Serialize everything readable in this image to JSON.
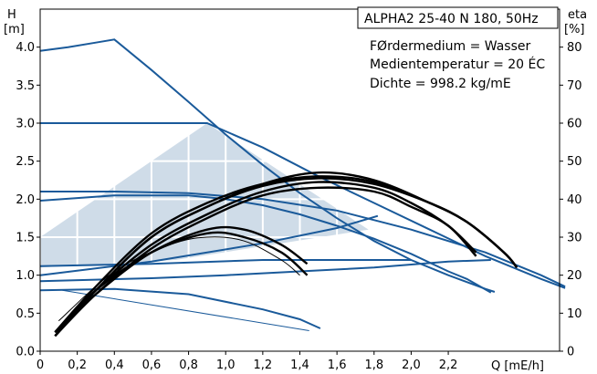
{
  "chart_data": {
    "type": "line",
    "title": "ALPHA2 25-40 N 180, 50Hz",
    "info_lines": [
      "FØrdermedium = Wasser",
      "Medientemperatur = 20 ÉC",
      "Dichte = 998.2 kg/mE"
    ],
    "x_axis": {
      "label": "Q [mE/h]",
      "range": [
        0,
        2.8
      ],
      "ticks": [
        0,
        0.2,
        0.4,
        0.6,
        0.8,
        1.0,
        1.2,
        1.4,
        1.6,
        1.8,
        2.0,
        2.2
      ],
      "tick_labels": [
        "0",
        "0,2",
        "0,4",
        "0,6",
        "0,8",
        "1,0",
        "1,2",
        "1,4",
        "1,6",
        "1,8",
        "2,0",
        "2,2"
      ]
    },
    "y_left": {
      "label_top": "H",
      "label_bottom": "[m]",
      "range": [
        0,
        4.5
      ],
      "ticks": [
        0,
        0.5,
        1.0,
        1.5,
        2.0,
        2.5,
        3.0,
        3.5,
        4.0
      ],
      "tick_labels": [
        "0.0",
        "0.5",
        "1.0",
        "1.5",
        "2.0",
        "2.5",
        "3.0",
        "3.5",
        "4.0"
      ]
    },
    "y_right": {
      "label_top": "eta",
      "label_bottom": "[%]",
      "range": [
        0,
        90
      ],
      "ticks": [
        0,
        10,
        20,
        30,
        40,
        50,
        60,
        70,
        80
      ],
      "tick_labels": [
        "0",
        "10",
        "20",
        "30",
        "40",
        "50",
        "60",
        "70",
        "80"
      ]
    },
    "colors": {
      "pump_curve": "#1a5a9a",
      "efficiency": "#000000",
      "area_fill": "#cfdce8",
      "grid": "#ffffff"
    },
    "head_curves": [
      {
        "x": [
          0,
          0.15,
          0.3,
          0.4,
          0.6,
          0.8,
          1.0,
          1.2,
          1.4,
          1.6,
          1.8,
          2.0,
          2.2,
          2.4,
          2.45
        ],
        "y": [
          3.95,
          4.0,
          4.06,
          4.1,
          3.7,
          3.28,
          2.85,
          2.45,
          2.08,
          1.75,
          1.45,
          1.2,
          1.0,
          0.82,
          0.78
        ]
      },
      {
        "x": [
          0,
          0.5,
          0.9,
          1.2,
          1.5,
          1.8,
          2.1,
          2.4,
          2.7,
          2.83
        ],
        "y": [
          3.0,
          3.0,
          3.0,
          2.68,
          2.3,
          1.95,
          1.6,
          1.25,
          0.95,
          0.83
        ]
      },
      {
        "x": [
          0,
          0.4,
          0.8,
          1.2,
          1.6,
          2.0,
          2.4,
          2.7,
          2.83
        ],
        "y": [
          2.1,
          2.1,
          2.08,
          2.0,
          1.85,
          1.6,
          1.3,
          1.0,
          0.85
        ]
      },
      {
        "x": [
          0,
          0.4,
          0.8,
          1.0,
          1.2,
          1.4,
          1.6,
          1.8,
          2.0,
          2.2,
          2.3,
          2.43
        ],
        "y": [
          1.98,
          2.05,
          2.05,
          2.0,
          1.92,
          1.8,
          1.65,
          1.48,
          1.28,
          1.05,
          0.95,
          0.77
        ]
      },
      {
        "x": [
          0,
          0.4,
          0.8,
          1.2,
          1.4,
          1.51
        ],
        "y": [
          0.8,
          0.82,
          0.75,
          0.55,
          0.42,
          0.3
        ]
      },
      {
        "x": [
          0,
          0.6,
          1.0,
          1.4,
          1.8,
          2.2,
          2.43
        ],
        "y": [
          0.92,
          0.96,
          1.0,
          1.05,
          1.1,
          1.18,
          1.2
        ]
      },
      {
        "x": [
          0,
          0.6,
          1.2,
          1.6,
          2.0
        ],
        "y": [
          1.12,
          1.15,
          1.2,
          1.2,
          1.2
        ]
      },
      {
        "x": [
          0,
          0.6,
          1.2,
          1.6,
          1.82
        ],
        "y": [
          1.0,
          1.18,
          1.42,
          1.62,
          1.78
        ]
      }
    ],
    "operating_area": {
      "x": [
        0,
        0.9,
        1.77,
        0.73,
        0
      ],
      "y": [
        1.5,
        3.0,
        1.6,
        1.2,
        1.1
      ]
    },
    "efficiency_curves": [
      {
        "x": [
          0.08,
          0.3,
          0.6,
          0.9,
          1.2,
          1.5,
          1.8,
          2.1,
          2.3,
          2.5,
          2.57
        ],
        "y": [
          4,
          16,
          30,
          38,
          44,
          47,
          45,
          39,
          34,
          26,
          22
        ]
      },
      {
        "x": [
          0.08,
          0.3,
          0.6,
          0.9,
          1.2,
          1.5,
          1.8,
          2.1,
          2.3,
          2.5,
          2.57
        ],
        "y": [
          4,
          16,
          30,
          38,
          43.5,
          45.5,
          44,
          39,
          34,
          26,
          22
        ]
      },
      {
        "x": [
          0.08,
          0.3,
          0.6,
          0.9,
          1.2,
          1.5,
          1.8,
          2.1,
          2.3,
          2.5,
          2.57
        ],
        "y": [
          5,
          17,
          31,
          39,
          44,
          46,
          44.5,
          39,
          34,
          26,
          22
        ]
      },
      {
        "x": [
          0.08,
          0.3,
          0.6,
          0.9,
          1.2,
          1.5,
          1.8,
          2.0,
          2.2,
          2.35
        ],
        "y": [
          4,
          15,
          27,
          35,
          41,
          43,
          42,
          38,
          33,
          25
        ]
      },
      {
        "x": [
          0.08,
          0.3,
          0.6,
          0.9,
          1.2,
          1.5,
          1.8,
          2.0,
          2.2,
          2.35
        ],
        "y": [
          5,
          16,
          28,
          36,
          42,
          44.5,
          43,
          39,
          33,
          26
        ]
      },
      {
        "x": [
          0.08,
          0.3,
          0.6,
          0.9,
          1.1,
          1.3,
          1.44
        ],
        "y": [
          5,
          16,
          26,
          31,
          30,
          26,
          20
        ]
      },
      {
        "x": [
          0.08,
          0.3,
          0.6,
          0.9,
          1.1,
          1.3,
          1.44
        ],
        "y": [
          5,
          15,
          26,
          32,
          32,
          28,
          23
        ]
      }
    ],
    "thin_curves": [
      {
        "x": [
          0.1,
          0.4,
          0.7,
          0.9,
          1.1,
          1.3,
          1.4
        ],
        "y": [
          8,
          21,
          28,
          30,
          29,
          24,
          20
        ]
      },
      {
        "x": [
          0.12,
          0.6,
          1.0,
          1.4,
          1.45
        ],
        "y": [
          0.8,
          0.7,
          0.55,
          0.3,
          0.27
        ]
      }
    ]
  }
}
